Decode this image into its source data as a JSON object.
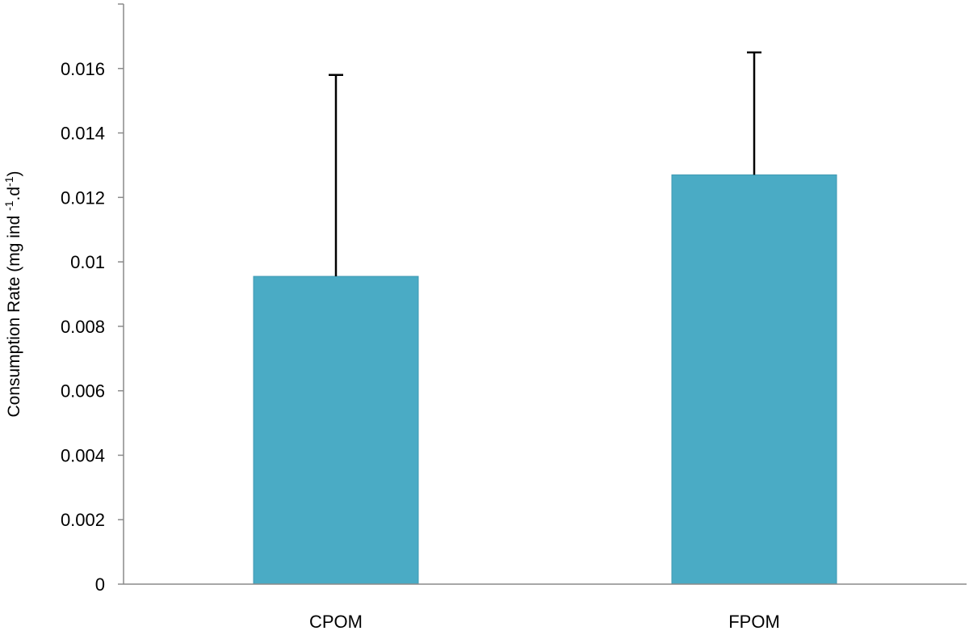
{
  "chart_data": {
    "type": "bar",
    "categories": [
      "CPOM",
      "FPOM"
    ],
    "values": [
      0.00955,
      0.0127
    ],
    "error_upper": [
      0.0158,
      0.0165
    ],
    "ylabel": "Consumption Rate (mg ind -1.d-1)",
    "ylabel_parts": {
      "prefix": "Consumption Rate (mg ind ",
      "sup1": "-1",
      "middle": ".d",
      "sup2": "-1",
      "suffix": ")"
    },
    "xlabel": "",
    "ylim": [
      0,
      0.018
    ],
    "yticks": [
      "0",
      "0.002",
      "0.004",
      "0.006",
      "0.008",
      "0.01",
      "0.012",
      "0.014",
      "0.016"
    ],
    "ytick_values": [
      0,
      0.002,
      0.004,
      0.006,
      0.008,
      0.01,
      0.012,
      0.014,
      0.016
    ],
    "grid": false,
    "colors": {
      "bar": "#4aabc5",
      "bar_edge": "#3f9ab3",
      "axis": "#8a8a8a",
      "error_bar": "#000000"
    }
  }
}
